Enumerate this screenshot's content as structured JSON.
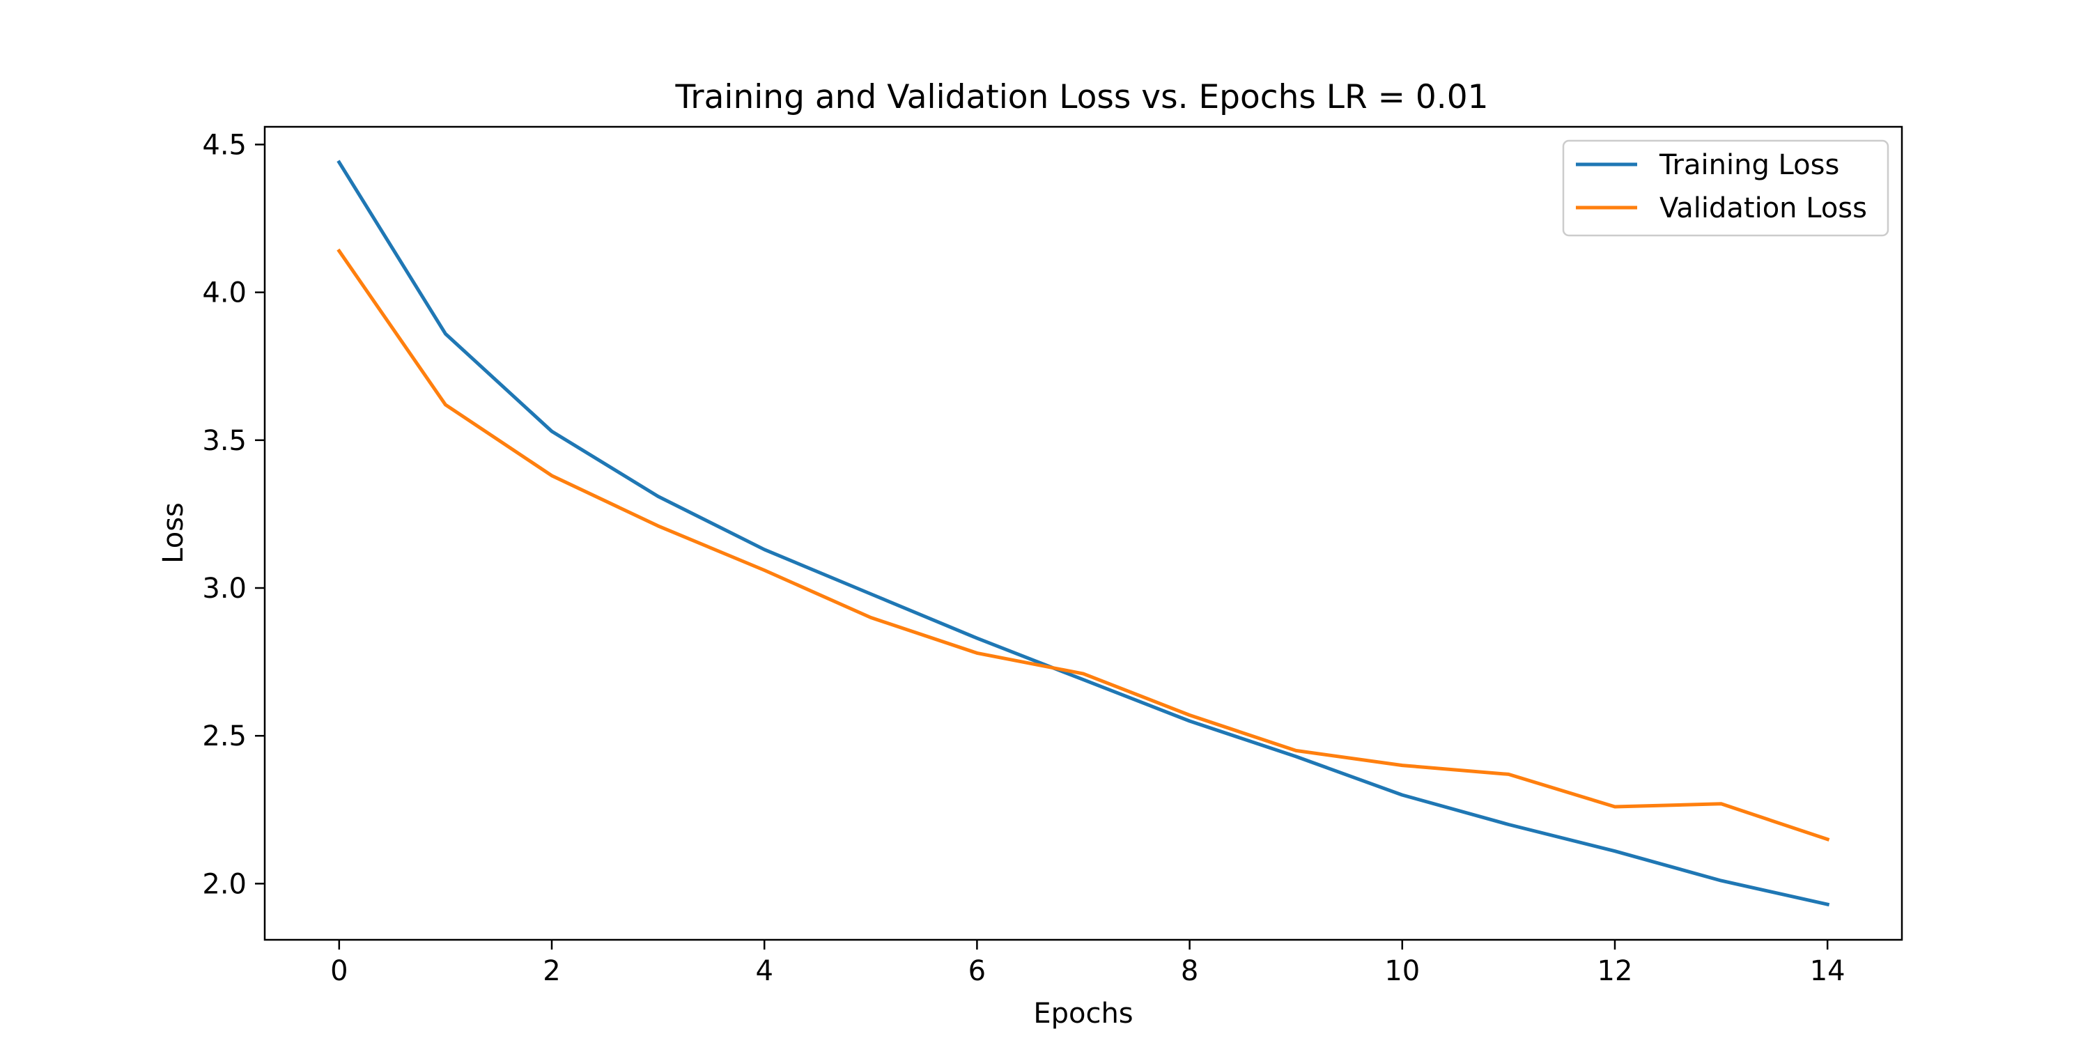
{
  "chart_data": {
    "type": "line",
    "title": "Training and Validation Loss vs. Epochs LR = 0.01",
    "xlabel": "Epochs",
    "ylabel": "Loss",
    "xlim": [
      -0.7,
      14.7
    ],
    "ylim": [
      1.81,
      4.56
    ],
    "xticks": [
      0,
      2,
      4,
      6,
      8,
      10,
      12,
      14
    ],
    "xtick_labels": [
      "0",
      "2",
      "4",
      "6",
      "8",
      "10",
      "12",
      "14"
    ],
    "yticks": [
      2.0,
      2.5,
      3.0,
      3.5,
      4.0,
      4.5
    ],
    "ytick_labels": [
      "2.0",
      "2.5",
      "3.0",
      "3.5",
      "4.0",
      "4.5"
    ],
    "grid": false,
    "legend_position": "top-right",
    "x": [
      0,
      1,
      2,
      3,
      4,
      5,
      6,
      7,
      8,
      9,
      10,
      11,
      12,
      13,
      14
    ],
    "series": [
      {
        "name": "Training Loss",
        "color": "#1f77b4",
        "values": [
          4.44,
          3.86,
          3.53,
          3.31,
          3.13,
          2.98,
          2.83,
          2.69,
          2.55,
          2.43,
          2.3,
          2.2,
          2.11,
          2.01,
          1.93
        ]
      },
      {
        "name": "Validation Loss",
        "color": "#ff7f0e",
        "values": [
          4.14,
          3.62,
          3.38,
          3.21,
          3.06,
          2.9,
          2.78,
          2.71,
          2.57,
          2.45,
          2.4,
          2.37,
          2.26,
          2.27,
          2.15
        ]
      }
    ]
  }
}
